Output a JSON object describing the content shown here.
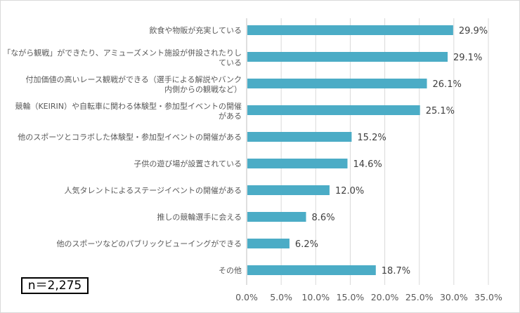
{
  "chart_data": {
    "type": "bar",
    "orientation": "horizontal",
    "categories": [
      [
        "飲食や物販が充実している"
      ],
      [
        "「ながら観戦」ができたり、アミューズメント施設が併設されたりし",
        "ている"
      ],
      [
        "付加価値の高いレース観戦ができる（選手による解説やバンク",
        "内側からの観戦など）"
      ],
      [
        "競輪（KEIRIN）や自転車に関わる体験型・参加型イベントの開催",
        "がある"
      ],
      [
        "他のスポーツとコラボした体験型・参加型イベントの開催がある"
      ],
      [
        "子供の遊び場が設置されている"
      ],
      [
        "人気タレントによるステージイベントの開催がある"
      ],
      [
        "推しの競輪選手に会える"
      ],
      [
        "他のスポーツなどのパブリックビューイングができる"
      ],
      [
        "その他"
      ]
    ],
    "values": [
      29.9,
      29.1,
      26.1,
      25.1,
      15.2,
      14.6,
      12.0,
      8.6,
      6.2,
      18.7
    ],
    "value_labels": [
      "29.9%",
      "29.1%",
      "26.1%",
      "25.1%",
      "15.2%",
      "14.6%",
      "12.0%",
      "8.6%",
      "6.2%",
      "18.7%"
    ],
    "xlim": [
      0,
      35
    ],
    "xticks": [
      "0.0%",
      "5.0%",
      "10.0%",
      "15.0%",
      "20.0%",
      "25.0%",
      "30.0%",
      "35.0%"
    ],
    "grid": "vertical",
    "bar_color": "#4bacc6",
    "annotation": "n＝2,275"
  }
}
